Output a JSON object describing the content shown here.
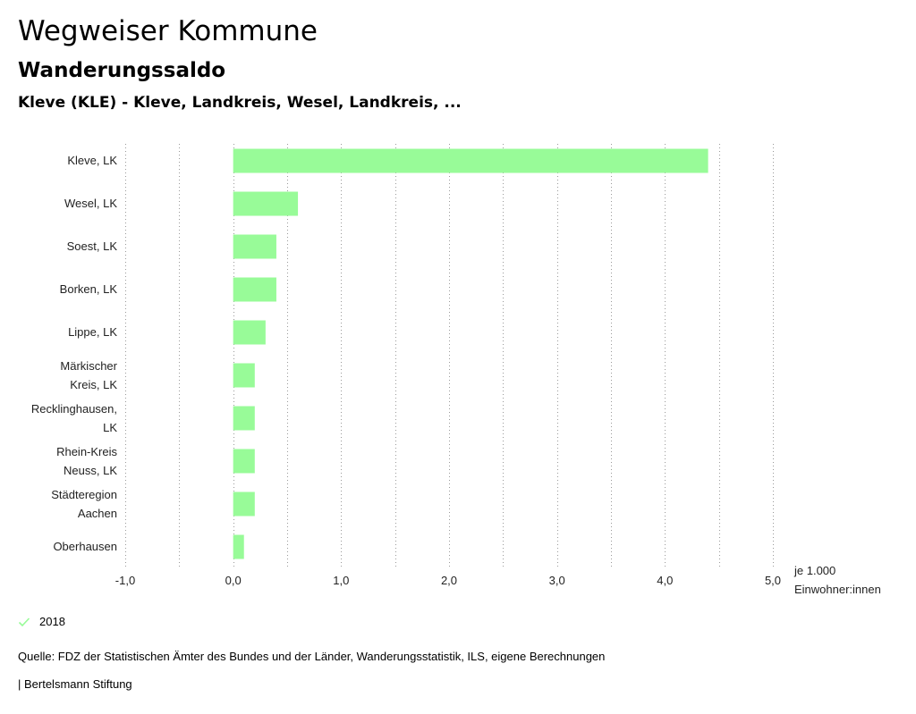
{
  "header": {
    "title": "Wegweiser Kommune",
    "subtitle": "Wanderungssaldo",
    "region": "Kleve (KLE) - Kleve, Landkreis, Wesel, Landkreis, ..."
  },
  "chart_data": {
    "type": "bar",
    "orientation": "horizontal",
    "categories": [
      [
        "Kleve, LK"
      ],
      [
        "Wesel, LK"
      ],
      [
        "Soest, LK"
      ],
      [
        "Borken, LK"
      ],
      [
        "Lippe, LK"
      ],
      [
        "Märkischer",
        "Kreis, LK"
      ],
      [
        "Recklinghausen,",
        "LK"
      ],
      [
        "Rhein-Kreis",
        "Neuss, LK"
      ],
      [
        "Städteregion",
        "Aachen"
      ],
      [
        "Oberhausen"
      ]
    ],
    "series": [
      {
        "name": "2018",
        "values": [
          4.4,
          0.6,
          0.4,
          0.4,
          0.3,
          0.2,
          0.2,
          0.2,
          0.2,
          0.1
        ]
      }
    ],
    "xlim": [
      -1.0,
      5.0
    ],
    "xticks": [
      -1.0,
      0.0,
      1.0,
      2.0,
      3.0,
      4.0,
      5.0
    ],
    "xtick_labels": [
      "-1,0",
      "0,0",
      "1,0",
      "2,0",
      "3,0",
      "4,0",
      "5,0"
    ],
    "xlabel": [
      "je 1.000",
      "Einwohner:innen"
    ],
    "grid": "dotted-vertical",
    "bar_color": "#98fb98"
  },
  "legend": {
    "label": "2018",
    "color": "#98fb98"
  },
  "source": "Quelle: FDZ der Statistischen Ämter des Bundes und der Länder, Wanderungsstatistik, ILS, eigene Berechnungen",
  "footer": "| Bertelsmann Stiftung"
}
